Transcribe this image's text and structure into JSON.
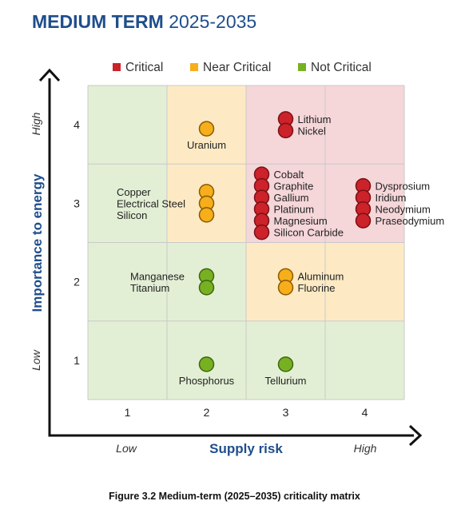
{
  "header": {
    "title_bold": "MEDIUM TERM",
    "title_years": "2025-2035"
  },
  "caption": "Figure 3.2 Medium-term (2025–2035) criticality matrix",
  "colors": {
    "title": "#1f4e8c",
    "critical": "#cc2229",
    "near_critical": "#f6ae1b",
    "not_critical": "#77b122",
    "zone_critical": "#f5d6d9",
    "zone_near_critical": "#fdeac4",
    "zone_not_critical": "#e3efd5"
  },
  "chart_data": {
    "type": "scatter",
    "title": "MEDIUM TERM 2025-2035",
    "xlabel": "Supply risk",
    "ylabel": "Importance to energy",
    "x_ticks": [
      "1",
      "2",
      "3",
      "4"
    ],
    "y_ticks": [
      "1",
      "2",
      "3",
      "4"
    ],
    "x_qualifiers": {
      "low": "Low",
      "high": "High"
    },
    "y_qualifiers": {
      "low": "Low",
      "high": "High"
    },
    "xlim": [
      0.5,
      4.5
    ],
    "ylim": [
      0.5,
      4.5
    ],
    "grid": true,
    "legend_position": "top",
    "legend": [
      {
        "name": "Critical",
        "category": "critical"
      },
      {
        "name": "Near Critical",
        "category": "near_critical"
      },
      {
        "name": "Not Critical",
        "category": "not_critical"
      }
    ],
    "zones": [
      {
        "x": 1,
        "y": 1,
        "category": "not_critical"
      },
      {
        "x": 2,
        "y": 1,
        "category": "not_critical"
      },
      {
        "x": 3,
        "y": 1,
        "category": "not_critical"
      },
      {
        "x": 4,
        "y": 1,
        "category": "not_critical"
      },
      {
        "x": 1,
        "y": 2,
        "category": "not_critical"
      },
      {
        "x": 2,
        "y": 2,
        "category": "not_critical"
      },
      {
        "x": 3,
        "y": 2,
        "category": "near_critical"
      },
      {
        "x": 4,
        "y": 2,
        "category": "near_critical"
      },
      {
        "x": 1,
        "y": 3,
        "category": "not_critical"
      },
      {
        "x": 2,
        "y": 3,
        "category": "near_critical"
      },
      {
        "x": 3,
        "y": 3,
        "category": "critical"
      },
      {
        "x": 4,
        "y": 3,
        "category": "critical"
      },
      {
        "x": 1,
        "y": 4,
        "category": "not_critical"
      },
      {
        "x": 2,
        "y": 4,
        "category": "near_critical"
      },
      {
        "x": 3,
        "y": 4,
        "category": "critical"
      },
      {
        "x": 4,
        "y": 4,
        "category": "critical"
      }
    ],
    "points": [
      {
        "name": "Lithium",
        "x": 3,
        "y": 4,
        "category": "critical"
      },
      {
        "name": "Nickel",
        "x": 3,
        "y": 4,
        "category": "critical"
      },
      {
        "name": "Uranium",
        "x": 2,
        "y": 4,
        "category": "near_critical"
      },
      {
        "name": "Cobalt",
        "x": 3,
        "y": 3,
        "category": "critical"
      },
      {
        "name": "Graphite",
        "x": 3,
        "y": 3,
        "category": "critical"
      },
      {
        "name": "Gallium",
        "x": 3,
        "y": 3,
        "category": "critical"
      },
      {
        "name": "Platinum",
        "x": 3,
        "y": 3,
        "category": "critical"
      },
      {
        "name": "Magnesium",
        "x": 3,
        "y": 3,
        "category": "critical"
      },
      {
        "name": "Silicon Carbide",
        "x": 3,
        "y": 3,
        "category": "critical"
      },
      {
        "name": "Dysprosium",
        "x": 4,
        "y": 3,
        "category": "critical"
      },
      {
        "name": "Iridium",
        "x": 4,
        "y": 3,
        "category": "critical"
      },
      {
        "name": "Neodymium",
        "x": 4,
        "y": 3,
        "category": "critical"
      },
      {
        "name": "Praseodymium",
        "x": 4,
        "y": 3,
        "category": "critical"
      },
      {
        "name": "Copper",
        "x": 2,
        "y": 3,
        "category": "near_critical"
      },
      {
        "name": "Electrical Steel",
        "x": 2,
        "y": 3,
        "category": "near_critical"
      },
      {
        "name": "Silicon",
        "x": 2,
        "y": 3,
        "category": "near_critical"
      },
      {
        "name": "Manganese",
        "x": 2,
        "y": 2,
        "category": "not_critical"
      },
      {
        "name": "Titanium",
        "x": 2,
        "y": 2,
        "category": "not_critical"
      },
      {
        "name": "Aluminum",
        "x": 3,
        "y": 2,
        "category": "near_critical"
      },
      {
        "name": "Fluorine",
        "x": 3,
        "y": 2,
        "category": "near_critical"
      },
      {
        "name": "Phosphorus",
        "x": 2,
        "y": 1,
        "category": "not_critical"
      },
      {
        "name": "Tellurium",
        "x": 3,
        "y": 1,
        "category": "not_critical"
      }
    ]
  }
}
